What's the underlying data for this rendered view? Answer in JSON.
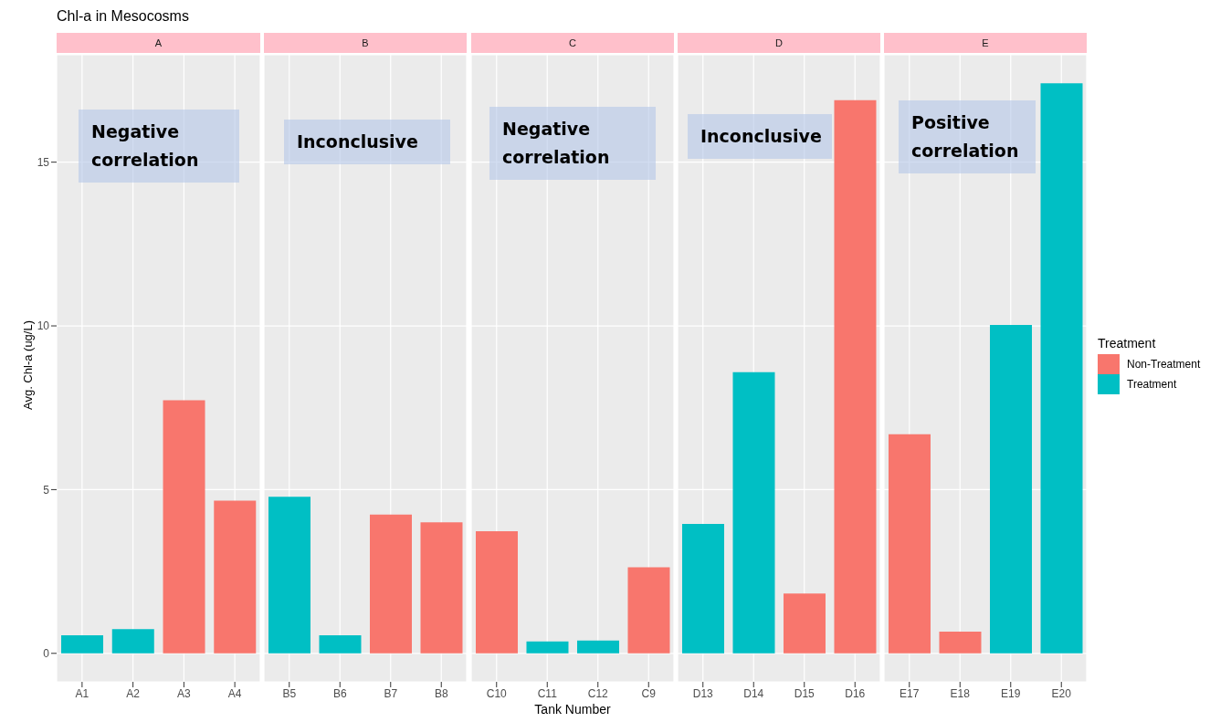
{
  "chart_data": [
    {
      "type": "bar",
      "title": "Chl-a in Mesocosms",
      "subtitle": "A",
      "ylabel": "Avg. Chl-a (ug/L)",
      "categories": [
        "A1",
        "A2",
        "A3",
        "A4"
      ],
      "stacked": true,
      "ylim": [
        -0.87,
        18.28
      ],
      "yticks": [
        0,
        5,
        10,
        15
      ],
      "grid": true,
      "annotations": [
        "Negative correlation"
      ],
      "series": [
        {
          "color": "#f8766d",
          "values": [
            null,
            null,
            7.73,
            4.66
          ]
        },
        {
          "color": "#00bfc4",
          "values": [
            0.55,
            0.74,
            null,
            null
          ]
        }
      ]
    },
    {
      "type": "bar",
      "subtitle": "B",
      "categories": [
        "B5",
        "B6",
        "B7",
        "B8"
      ],
      "stacked": true,
      "ylim": [
        -0.87,
        18.28
      ],
      "yticks": [
        0,
        5,
        10,
        15
      ],
      "grid": true,
      "tick_labels": "x",
      "annotations": [
        "Inconclusive"
      ],
      "series": [
        {
          "color": "#f8766d",
          "values": [
            null,
            null,
            4.24,
            4.0
          ]
        },
        {
          "color": "#00bfc4",
          "values": [
            4.78,
            0.55,
            null,
            null
          ]
        }
      ]
    },
    {
      "type": "bar",
      "subtitle": "C",
      "xlabel": "Tank Number",
      "categories": [
        "C10",
        "C11",
        "C12",
        "C9"
      ],
      "stacked": true,
      "ylim": [
        -0.87,
        18.28
      ],
      "yticks": [
        0,
        5,
        10,
        15
      ],
      "grid": true,
      "tick_labels": "x",
      "annotations": [
        "Negative correlation"
      ],
      "series": [
        {
          "color": "#f8766d",
          "values": [
            3.73,
            null,
            null,
            2.63
          ]
        },
        {
          "color": "#00bfc4",
          "values": [
            null,
            0.36,
            0.39,
            null
          ]
        }
      ]
    },
    {
      "type": "bar",
      "subtitle": "D",
      "categories": [
        "D13",
        "D14",
        "D15",
        "D16"
      ],
      "stacked": true,
      "ylim": [
        -0.87,
        18.28
      ],
      "yticks": [
        0,
        5,
        10,
        15
      ],
      "grid": true,
      "tick_labels": "x",
      "annotations": [
        "Inconclusive"
      ],
      "series": [
        {
          "color": "#f8766d",
          "values": [
            null,
            null,
            1.83,
            16.89
          ]
        },
        {
          "color": "#00bfc4",
          "values": [
            3.95,
            8.59,
            null,
            null
          ]
        }
      ]
    },
    {
      "type": "bar",
      "subtitle": "E",
      "categories": [
        "E17",
        "E18",
        "E19",
        "E20"
      ],
      "stacked": true,
      "ylim": [
        -0.87,
        18.28
      ],
      "yticks": [
        0,
        5,
        10,
        15
      ],
      "grid": true,
      "tick_labels": "x",
      "annotations": [
        "Positive correlation"
      ],
      "legend": "right",
      "legend_title": "Treatment",
      "series": [
        {
          "name": "Non-Treatment",
          "color": "#f8766d",
          "values": [
            6.69,
            0.66,
            null,
            null
          ]
        },
        {
          "name": "Treatment",
          "color": "#00bfc4",
          "values": [
            null,
            null,
            10.03,
            17.41
          ]
        }
      ]
    }
  ]
}
